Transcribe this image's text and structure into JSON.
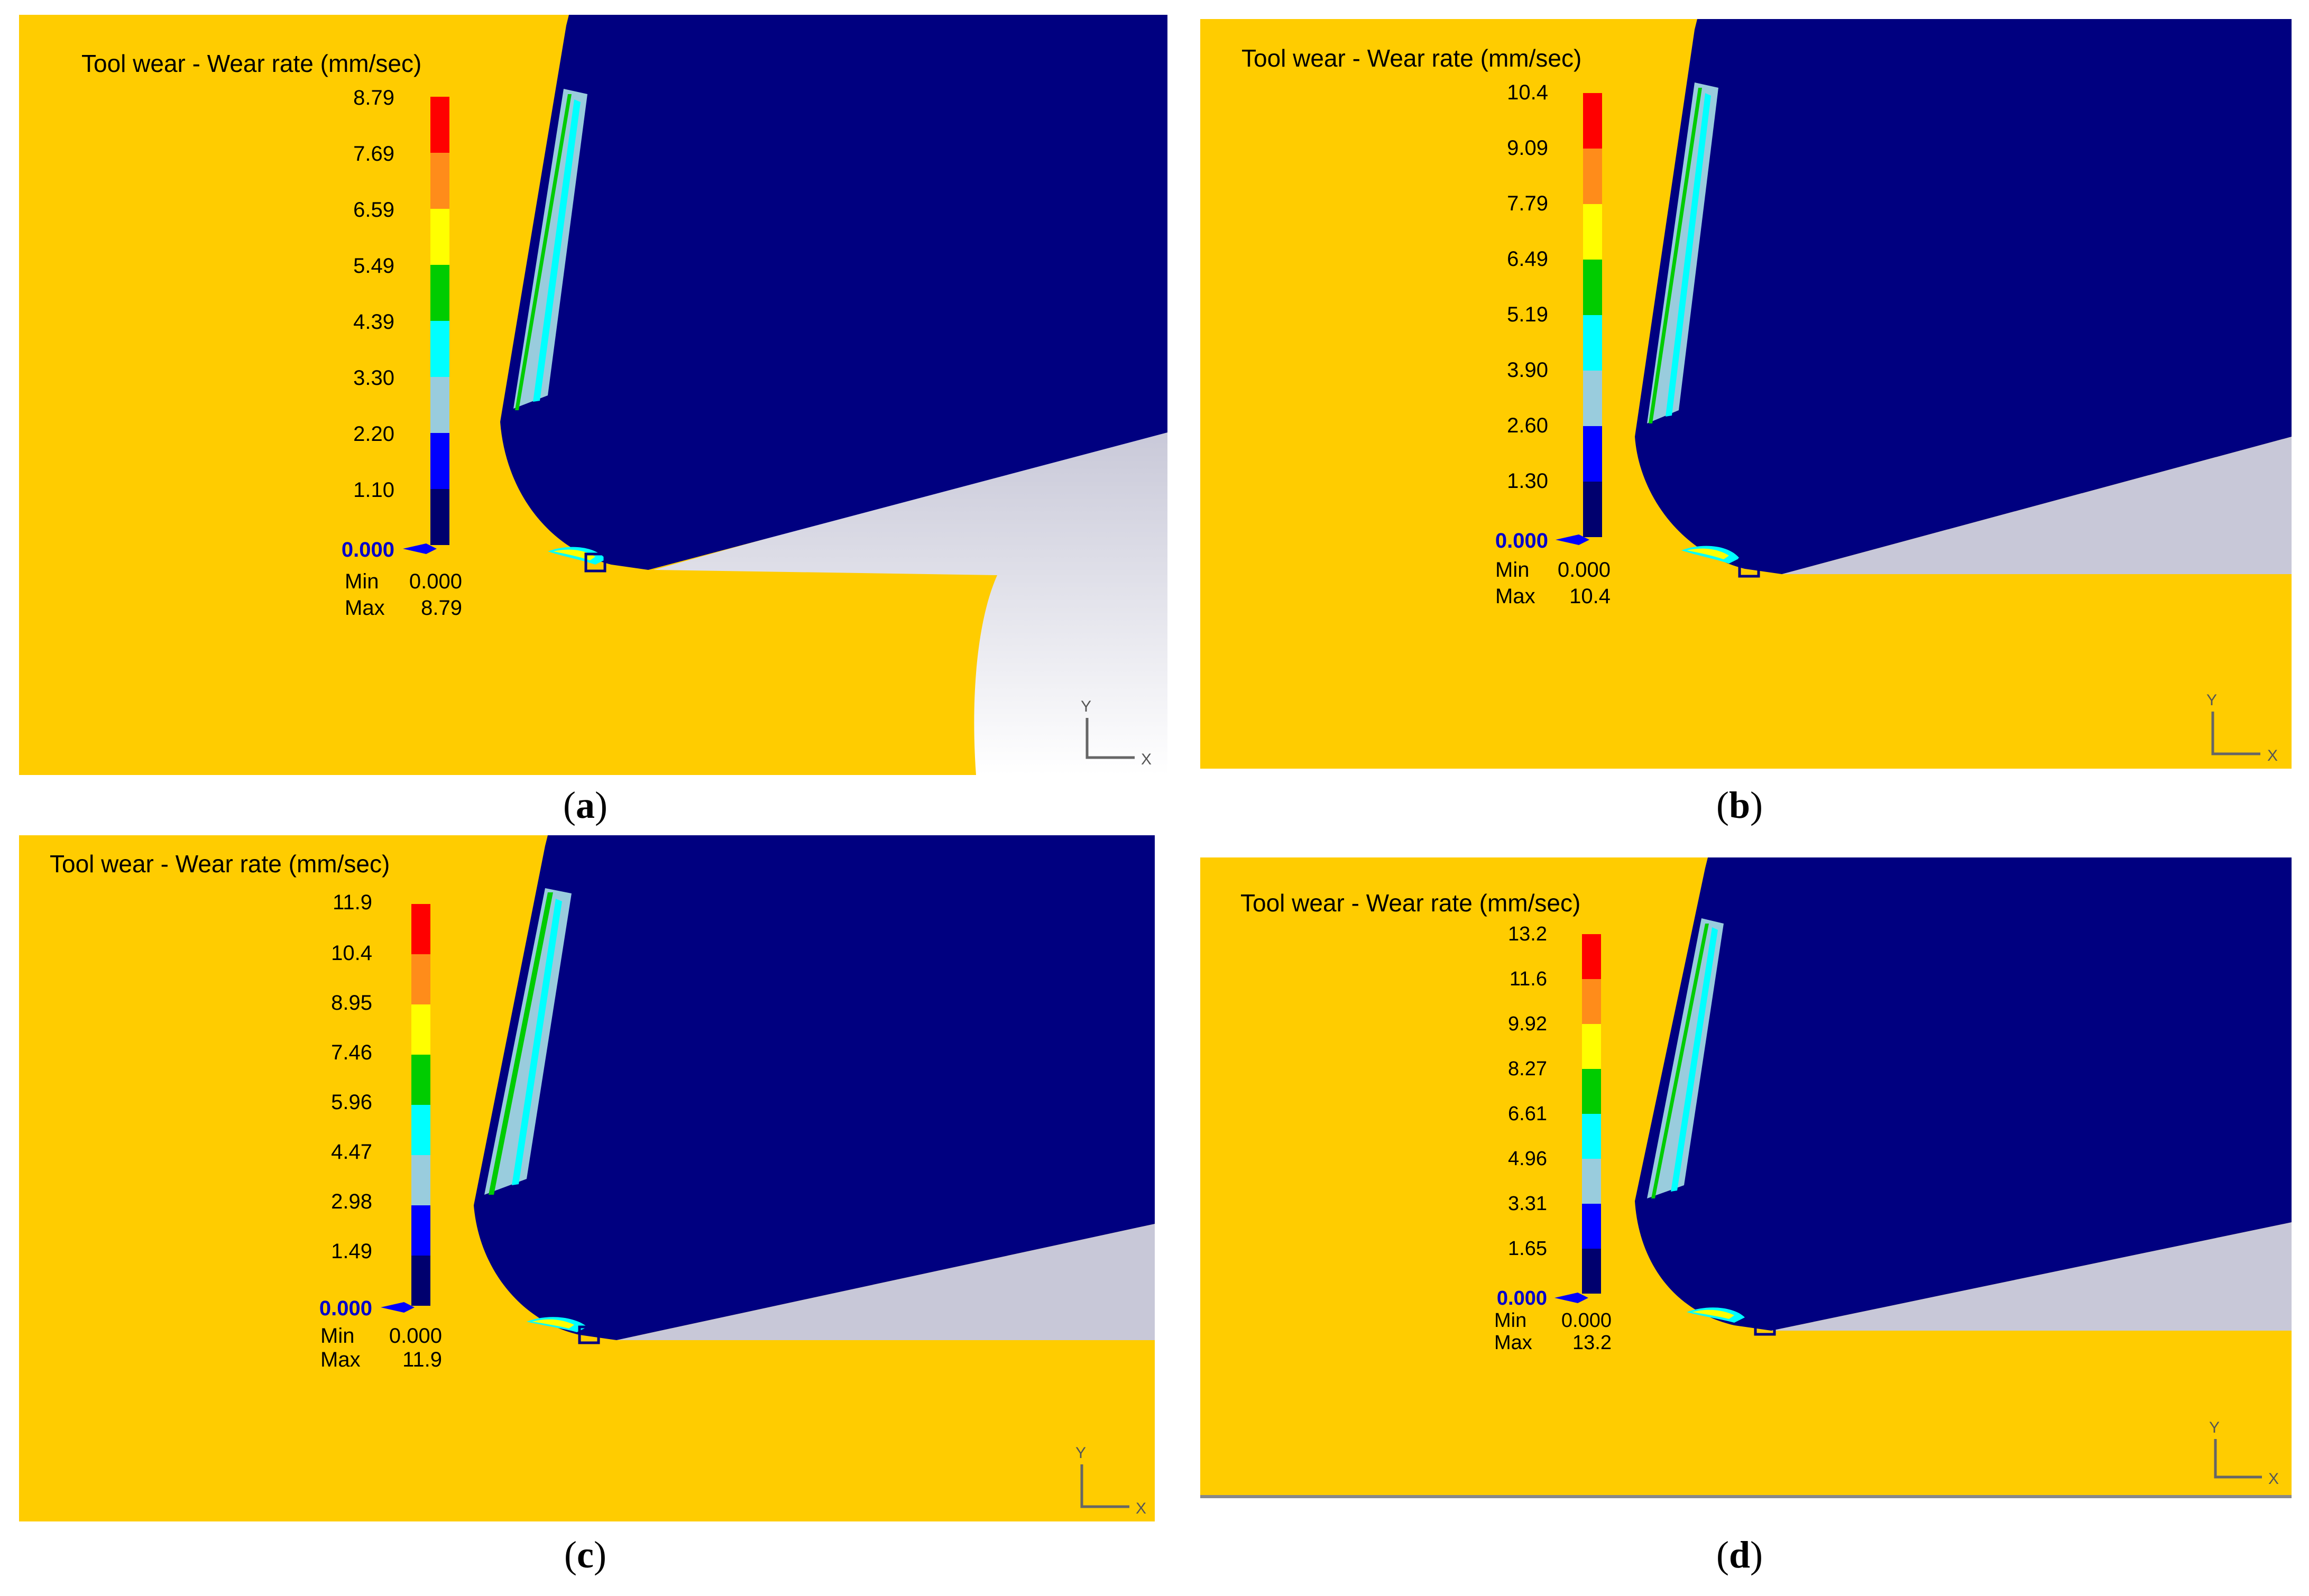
{
  "figure": {
    "letter_open": "(",
    "letter_close": ")"
  },
  "panels": [
    {
      "id": "a",
      "caption": "a",
      "legend_title": "Tool wear - Wear rate (mm/sec)",
      "scale": [
        "8.79",
        "7.69",
        "6.59",
        "5.49",
        "4.39",
        "3.30",
        "2.20",
        "1.10"
      ],
      "zero": "0.000",
      "min_label": "Min",
      "min_value": "0.000",
      "max_label": "Max",
      "max_value": "8.79",
      "axis_x": "X",
      "axis_y": "Y"
    },
    {
      "id": "b",
      "caption": "b",
      "legend_title": "Tool wear - Wear rate (mm/sec)",
      "scale": [
        "10.4",
        "9.09",
        "7.79",
        "6.49",
        "5.19",
        "3.90",
        "2.60",
        "1.30"
      ],
      "zero": "0.000",
      "min_label": "Min",
      "min_value": "0.000",
      "max_label": "Max",
      "max_value": "10.4",
      "axis_x": "X",
      "axis_y": "Y"
    },
    {
      "id": "c",
      "caption": "c",
      "legend_title": "Tool wear - Wear rate (mm/sec)",
      "scale": [
        "11.9",
        "10.4",
        "8.95",
        "7.46",
        "5.96",
        "4.47",
        "2.98",
        "1.49"
      ],
      "zero": "0.000",
      "min_label": "Min",
      "min_value": "0.000",
      "max_label": "Max",
      "max_value": "11.9",
      "axis_x": "X",
      "axis_y": "Y"
    },
    {
      "id": "d",
      "caption": "d",
      "legend_title": "Tool wear - Wear rate (mm/sec)",
      "scale": [
        "13.2",
        "11.6",
        "9.92",
        "8.27",
        "6.61",
        "4.96",
        "3.31",
        "1.65"
      ],
      "zero": "0.000",
      "min_label": "Min",
      "min_value": "0.000",
      "max_label": "Max",
      "max_value": "13.2",
      "axis_x": "X",
      "axis_y": "Y"
    }
  ],
  "colors": {
    "workpiece": "#FFCC00",
    "tool": "#000080",
    "background_grey": "#C8C8D8",
    "legend_bands": [
      "#FF0000",
      "#FF8C1A",
      "#FFFF00",
      "#00CC00",
      "#00FFFF",
      "#99CCDD",
      "#0000FF",
      "#00006E"
    ]
  }
}
